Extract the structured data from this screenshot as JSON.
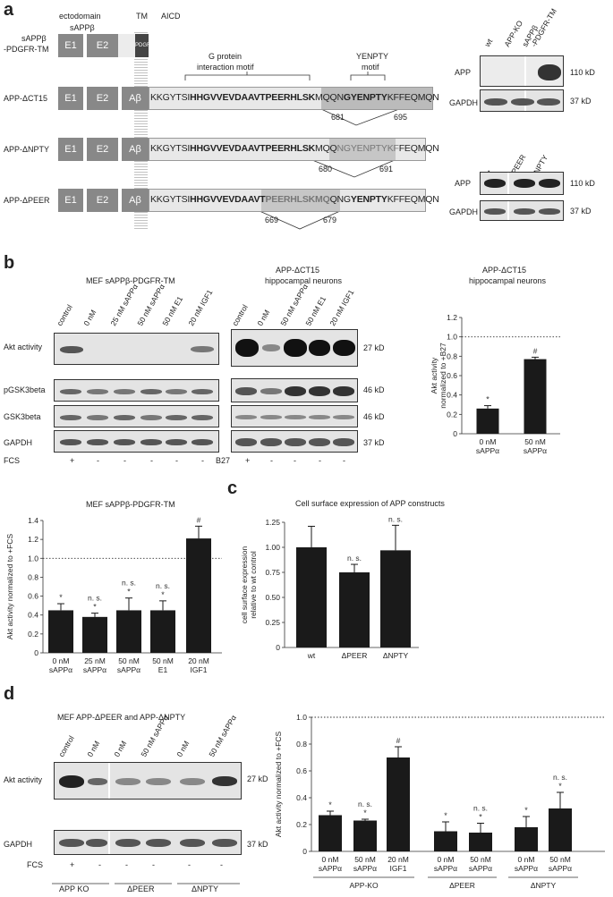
{
  "panel_a": {
    "label": "a",
    "header": {
      "ectodomain": "ectodomain",
      "sappb": "sAPPβ",
      "tm": "TM",
      "aicd": "AICD"
    },
    "constructs": [
      {
        "name_line1": "sAPPβ",
        "name_line2": "-PDGFR-TM",
        "tm_label": "PDGFR"
      },
      {
        "name": "APP-ΔCT15"
      },
      {
        "name": "APP-ΔNPTY"
      },
      {
        "name": "APP-ΔPEER"
      }
    ],
    "domains": {
      "e1": "E1",
      "e2": "E2",
      "abeta": "Aβ"
    },
    "motifs": {
      "g_protein": "G protein\ninteraction motif",
      "g_line1": "G protein",
      "g_line2": "interaction motif",
      "yenpty_line1": "YENPTY",
      "yenpty_line2": "motif"
    },
    "seq_ct15": {
      "a": "KKGYTSI",
      "b": "HHGVVEVDAAVTPEERHLSK",
      "c": "MQQN",
      "d": "GYENPTY",
      "e": "KFFEQMQN"
    },
    "seq_npty": {
      "a": "KKGYTSI",
      "b": "HHGVVEVDAAVTPEERHLSK",
      "c": "MQQ",
      "d": "NGYENPTYKF",
      "e": "FEQMQN"
    },
    "seq_peer": {
      "a": "KKGYTSI",
      "b": "HHGVVEVDAAVT",
      "c": "PEERHLSKMQ",
      "d": "QNG",
      "e": "YENPTY",
      "f": "KFFEQMQN"
    },
    "positions": {
      "p681": "681",
      "p695": "695",
      "p680": "680",
      "p691": "691",
      "p669": "669",
      "p679": "679"
    },
    "blot1": {
      "lanes": [
        "wt",
        "APP-KO",
        "sAPPβ\n-PDGFR-TM"
      ],
      "lane1": "wt",
      "lane2": "APP-KO",
      "lane3a": "sAPPβ",
      "lane3b": "-PDGFR-TM",
      "rows": [
        "APP",
        "GAPDH"
      ],
      "kd": [
        "110 kD",
        "37 kD"
      ]
    },
    "blot2": {
      "lane1": "wt",
      "lane2": "ΔPEER",
      "lane3": "ΔNPTY",
      "rows": [
        "APP",
        "GAPDH"
      ],
      "kd": [
        "110 kD",
        "37 kD"
      ]
    }
  },
  "panel_b": {
    "label": "b",
    "blot_left_title": "MEF sAPPβ-PDGFR-TM",
    "blot_left_lanes": [
      "control",
      "0 nM",
      "25 nM sAPPα",
      "50 nM sAPPα",
      "50 nM E1",
      "20 nM IGF1"
    ],
    "blot_mid_title1": "APP-ΔCT15",
    "blot_mid_title2": "hippocampal neurons",
    "blot_mid_lanes": [
      "control",
      "0 nM",
      "50 nM sAPPα",
      "50 nM E1",
      "20 nM IGF1"
    ],
    "rows": [
      "Akt activity",
      "pGSK3beta",
      "GSK3beta",
      "GAPDH"
    ],
    "kd": [
      "27 kD",
      "46 kD",
      "46 kD",
      "37 kD"
    ],
    "fcs_label": "FCS",
    "fcs_left": [
      "+",
      "-",
      "-",
      "-",
      "-",
      "-"
    ],
    "b27_label": "B27",
    "fcs_mid": [
      "+",
      "-",
      "-",
      "-",
      "-"
    ],
    "chart_title1": "APP-ΔCT15",
    "chart_title2": "hippocampal neurons"
  },
  "panel_c": {
    "label": "c",
    "title": "Cell surface expression of APP constructs"
  },
  "panel_d": {
    "label": "d",
    "blot_title": "MEF APP-ΔPEER and APP-ΔNPTY",
    "lanes": [
      "control",
      "0 nM",
      "0 nM",
      "50 nM sAPPα",
      "0 nM",
      "50 nM sAPPα"
    ],
    "rows": [
      "Akt activity",
      "GAPDH"
    ],
    "kd": [
      "27 kD",
      "37 kD"
    ],
    "fcs_label": "FCS",
    "fcs": [
      "+",
      "-",
      "-",
      "-",
      "-",
      "-"
    ],
    "groups": [
      "APP KO",
      "ΔPEER",
      "ΔNPTY"
    ]
  },
  "chart_data": [
    {
      "id": "b_ct15",
      "type": "bar",
      "ylabel": "Akt activity\nnormalized to +B27",
      "ylabel1": "Akt activity",
      "ylabel2": "normalized to +B27",
      "categories": [
        "0 nM\nsAPPα",
        "50 nM\nsAPPα"
      ],
      "values": [
        0.26,
        0.77
      ],
      "errors": [
        0.03,
        0.02
      ],
      "annotations": [
        "*",
        "#"
      ],
      "ylim": [
        0,
        1.2
      ],
      "yticks": [
        "0",
        "0.2",
        "0.4",
        "0.6",
        "0.8",
        "1.0",
        "1.2"
      ],
      "reference_line": 1.0
    },
    {
      "id": "b_mef",
      "type": "bar",
      "title": "MEF sAPPβ-PDGFR-TM",
      "ylabel": "Akt activity normalized to +FCS",
      "categories": [
        "0 nM\nsAPPα",
        "25 nM\nsAPPα",
        "50 nM\nsAPPα",
        "50 nM\nE1",
        "20 nM\nIGF1"
      ],
      "values": [
        0.45,
        0.38,
        0.45,
        0.45,
        1.21
      ],
      "errors": [
        0.07,
        0.04,
        0.13,
        0.1,
        0.13
      ],
      "annotations": [
        "*",
        "n. s.\n*",
        "n. s.\n*",
        "n. s.\n*",
        "#"
      ],
      "ylim": [
        0,
        1.4
      ],
      "yticks": [
        "0",
        "0.2",
        "0.4",
        "0.6",
        "0.8",
        "1.0",
        "1.2",
        "1.4"
      ],
      "reference_line": 1.0
    },
    {
      "id": "c_surface",
      "type": "bar",
      "title": "Cell surface expression of APP constructs",
      "ylabel": "cell surface expression\nrelative to wt control",
      "ylabel1": "cell surface expression",
      "ylabel2": "relative to wt control",
      "categories": [
        "wt",
        "ΔPEER",
        "ΔNPTY"
      ],
      "values": [
        1.0,
        0.75,
        0.97
      ],
      "errors": [
        0.21,
        0.08,
        0.25
      ],
      "annotations": [
        "",
        "n. s.",
        "n. s."
      ],
      "ylim": [
        0,
        1.25
      ],
      "yticks": [
        "0",
        "0.25",
        "0.50",
        "0.75",
        "1.00",
        "1.25"
      ]
    },
    {
      "id": "d_mef",
      "type": "bar",
      "ylabel": "Akt activity normalized to +FCS",
      "categories": [
        "0 nM\nsAPPα",
        "50 nM\nsAPPα",
        "20 nM\nIGF1",
        "0 nM\nsAPPα",
        "50 nM\nsAPPα",
        "0 nM\nsAPPα",
        "50 nM\nsAPPα"
      ],
      "groups": [
        "APP-KO",
        "APP-KO",
        "APP-KO",
        "ΔPEER",
        "ΔPEER",
        "ΔNPTY",
        "ΔNPTY"
      ],
      "group_labels": [
        "APP-KO",
        "ΔPEER",
        "ΔNPTY"
      ],
      "values": [
        0.27,
        0.23,
        0.7,
        0.15,
        0.14,
        0.18,
        0.32
      ],
      "errors": [
        0.03,
        0.01,
        0.08,
        0.07,
        0.07,
        0.08,
        0.12
      ],
      "annotations": [
        "*",
        "n. s.\n*",
        "#",
        "*",
        "n. s.\n*",
        "*",
        "n. s.\n*"
      ],
      "ylim": [
        0,
        1.0
      ],
      "yticks": [
        "0",
        "0.2",
        "0.4",
        "0.6",
        "0.8",
        "1.0"
      ],
      "reference_line": 1.0
    }
  ]
}
